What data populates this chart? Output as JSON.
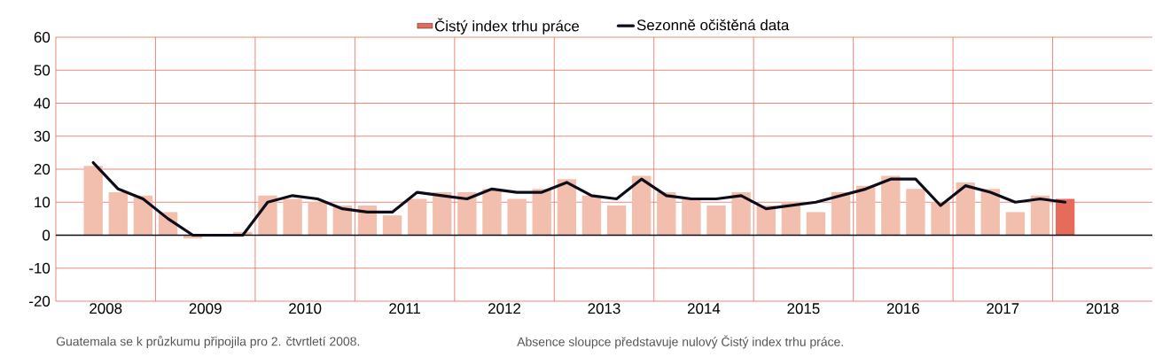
{
  "chart_data": {
    "type": "bar",
    "x": [
      2008.375,
      2008.625,
      2008.875,
      2009.125,
      2009.375,
      2009.625,
      2009.875,
      2010.125,
      2010.375,
      2010.625,
      2010.875,
      2011.125,
      2011.375,
      2011.625,
      2011.875,
      2012.125,
      2012.375,
      2012.625,
      2012.875,
      2013.125,
      2013.375,
      2013.625,
      2013.875,
      2014.125,
      2014.375,
      2014.625,
      2014.875,
      2015.125,
      2015.375,
      2015.625,
      2015.875,
      2016.125,
      2016.375,
      2016.625,
      2016.875,
      2017.125,
      2017.375,
      2017.625,
      2017.875,
      2018.125
    ],
    "series": [
      {
        "name": "Čistý index trhu práce",
        "color": "#e56b5a",
        "colors": [
          "#f2bfae",
          "#f2bfae",
          "#f2bfae",
          "#f2bfae",
          "#f2bfae",
          "#f2bfae",
          "#f2bfae",
          "#f2bfae",
          "#f2bfae",
          "#f2bfae",
          "#f2bfae",
          "#f2bfae",
          "#f2bfae",
          "#f2bfae",
          "#f2bfae",
          "#f2bfae",
          "#f2bfae",
          "#f2bfae",
          "#f2bfae",
          "#f2bfae",
          "#f2bfae",
          "#f2bfae",
          "#f2bfae",
          "#f2bfae",
          "#f2bfae",
          "#f2bfae",
          "#f2bfae",
          "#f2bfae",
          "#f2bfae",
          "#f2bfae",
          "#f2bfae",
          "#f2bfae",
          "#f2bfae",
          "#f2bfae",
          "#f2bfae",
          "#f2bfae",
          "#f2bfae",
          "#f2bfae",
          "#f2bfae",
          "#e56b5a"
        ],
        "values": [
          21,
          13,
          12,
          7,
          -1,
          0,
          1,
          12,
          11,
          10,
          9,
          9,
          6,
          11,
          13,
          13,
          14,
          11,
          14,
          17,
          12,
          9,
          18,
          13,
          11,
          9,
          13,
          9,
          10,
          7,
          13,
          15,
          18,
          14,
          10,
          16,
          14,
          7,
          12,
          11
        ]
      },
      {
        "name": "Sezonně očištěná data",
        "type": "line",
        "color": "#0d0d1a",
        "values": [
          22,
          14,
          11,
          5,
          0,
          0,
          0,
          10,
          12,
          11,
          8,
          7,
          7,
          13,
          12,
          11,
          14,
          13,
          13,
          16,
          12,
          11,
          17,
          12,
          11,
          11,
          12,
          8,
          9,
          10,
          12,
          14,
          17,
          17,
          9,
          15,
          13,
          10,
          11,
          10
        ]
      }
    ],
    "xlim": [
      2008,
      2019
    ],
    "xticks": [
      {
        "value": 2008.5,
        "label": "2008"
      },
      {
        "value": 2009,
        "label": null
      },
      {
        "value": 2009.5,
        "label": "2009"
      },
      {
        "value": 2010,
        "label": null
      },
      {
        "value": 2010.5,
        "label": "2010"
      },
      {
        "value": 2011,
        "label": null
      },
      {
        "value": 2011.5,
        "label": "2011"
      },
      {
        "value": 2012,
        "label": null
      },
      {
        "value": 2012.5,
        "label": "2012"
      },
      {
        "value": 2013,
        "label": null
      },
      {
        "value": 2013.5,
        "label": "2013"
      },
      {
        "value": 2014,
        "label": null
      },
      {
        "value": 2014.5,
        "label": "2014"
      },
      {
        "value": 2015,
        "label": null
      },
      {
        "value": 2015.5,
        "label": "2015"
      },
      {
        "value": 2016,
        "label": null
      },
      {
        "value": 2016.5,
        "label": "2016"
      },
      {
        "value": 2017,
        "label": null
      },
      {
        "value": 2017.5,
        "label": "2017"
      },
      {
        "value": 2018,
        "label": null
      },
      {
        "value": 2018.5,
        "label": "2018"
      }
    ],
    "ylim": [
      -20,
      60
    ],
    "yticks": [
      -20,
      -10,
      0,
      10,
      20,
      30,
      40,
      50,
      60
    ],
    "grid": true,
    "legend": "top",
    "ref_lines": [
      {
        "axis": "y",
        "value": 0,
        "color": "#0d0d1a"
      }
    ],
    "annotations": [
      "Guatemala se k průzkumu připojila pro 2. čtvrtletí 2008.",
      "Absence sloupce představuje nulový Čistý index trhu práce."
    ]
  }
}
